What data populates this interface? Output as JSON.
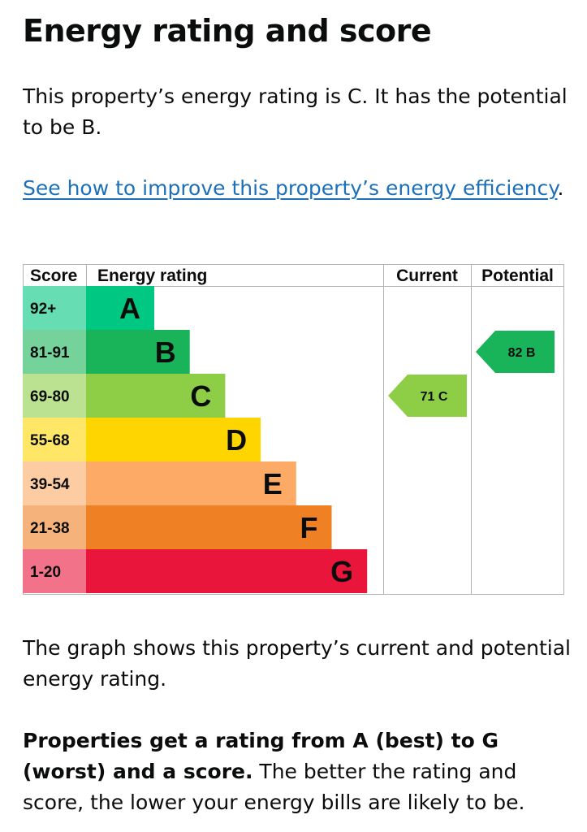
{
  "page": {
    "title": "Energy rating and score",
    "intro": "This property’s energy rating is C. It has the potential to be B.",
    "link_text": "See how to improve this property’s energy efficiency",
    "link_suffix": ".",
    "graph_note": "The graph shows this property’s current and potential energy rating.",
    "info_bold": "Properties get a rating from A (best) to G (worst) and a score.",
    "info_rest": " The better the rating and score, the lower your energy bills are likely to be."
  },
  "chart_data": {
    "type": "table",
    "headers": {
      "score": "Score",
      "rating": "Energy rating",
      "current": "Current",
      "potential": "Potential"
    },
    "bands": [
      {
        "letter": "A",
        "score": "92+",
        "color": "#00c781",
        "score_bg": "#66dd b3"
      },
      {
        "letter": "B",
        "score": "81-91",
        "color": "#19b459",
        "score_bg": "#75d29b"
      },
      {
        "letter": "C",
        "score": "69-80",
        "color": "#8dce46",
        "score_bg": "#bbe290"
      },
      {
        "letter": "D",
        "score": "55-68",
        "color": "#ffd500",
        "score_bg": "#ffe666"
      },
      {
        "letter": "E",
        "score": "39-54",
        "color": "#fcaa65",
        "score_bg": "#fdcca3"
      },
      {
        "letter": "F",
        "score": "21-38",
        "color": "#ef8023",
        "score_bg": "#f5b37b"
      },
      {
        "letter": "G",
        "score": "1-20",
        "color": "#e9153b",
        "score_bg": "#f27389"
      }
    ],
    "current": {
      "score": 71,
      "letter": "C",
      "label": "71 C",
      "color": "#8dce46"
    },
    "potential": {
      "score": 82,
      "letter": "B",
      "label": "82 B",
      "color": "#19b459"
    }
  }
}
